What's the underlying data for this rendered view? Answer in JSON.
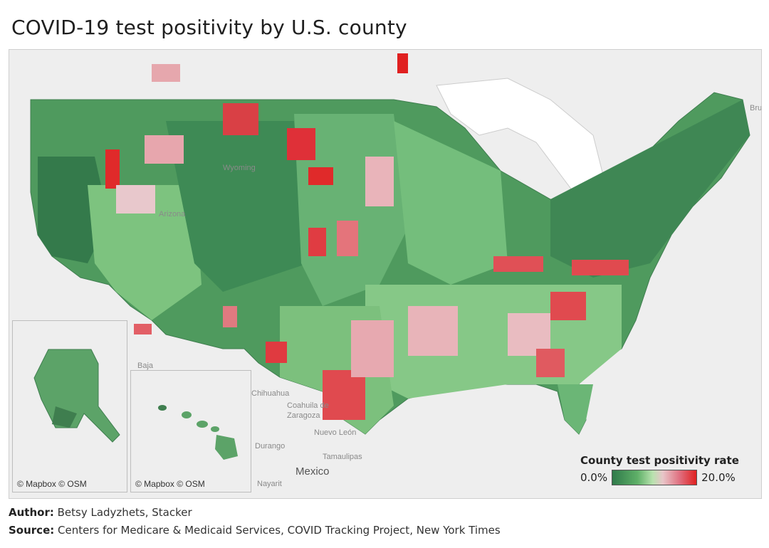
{
  "title": "COVID-19 test positivity by U.S. county",
  "map": {
    "labels": {
      "mexico": "Mexico",
      "chihuahua": "Chihuahua",
      "coahuila": "Coahuila de",
      "zaragoza": "Zaragoza",
      "nuevo_leon": "Nuevo León",
      "tamaulipas": "Tamaulipas",
      "durango": "Durango",
      "baja": "Baja",
      "nayarit": "Nayarit",
      "brunswick": "Bruns",
      "wyoming": "Wyoming",
      "arizona": "Arizona"
    },
    "insets": {
      "alaska_credit": "© Mapbox © OSM",
      "hawaii_credit": "© Mapbox © OSM"
    },
    "colors": {
      "low": "#2f7a4a",
      "mid_low": "#b8e2ae",
      "mid_high": "#e8c6c9",
      "high": "#e02020",
      "basemap": "#eeeeee",
      "water": "#ffffff"
    }
  },
  "legend": {
    "title": "County test positivity rate",
    "min_label": "0.0%",
    "max_label": "20.0%"
  },
  "footer": {
    "author_label": "Author:",
    "author_value": "Betsy Ladyzhets, Stacker",
    "source_label": "Source:",
    "source_value": "Centers for Medicare & Medicaid Services, COVID Tracking Project, New York Times"
  }
}
